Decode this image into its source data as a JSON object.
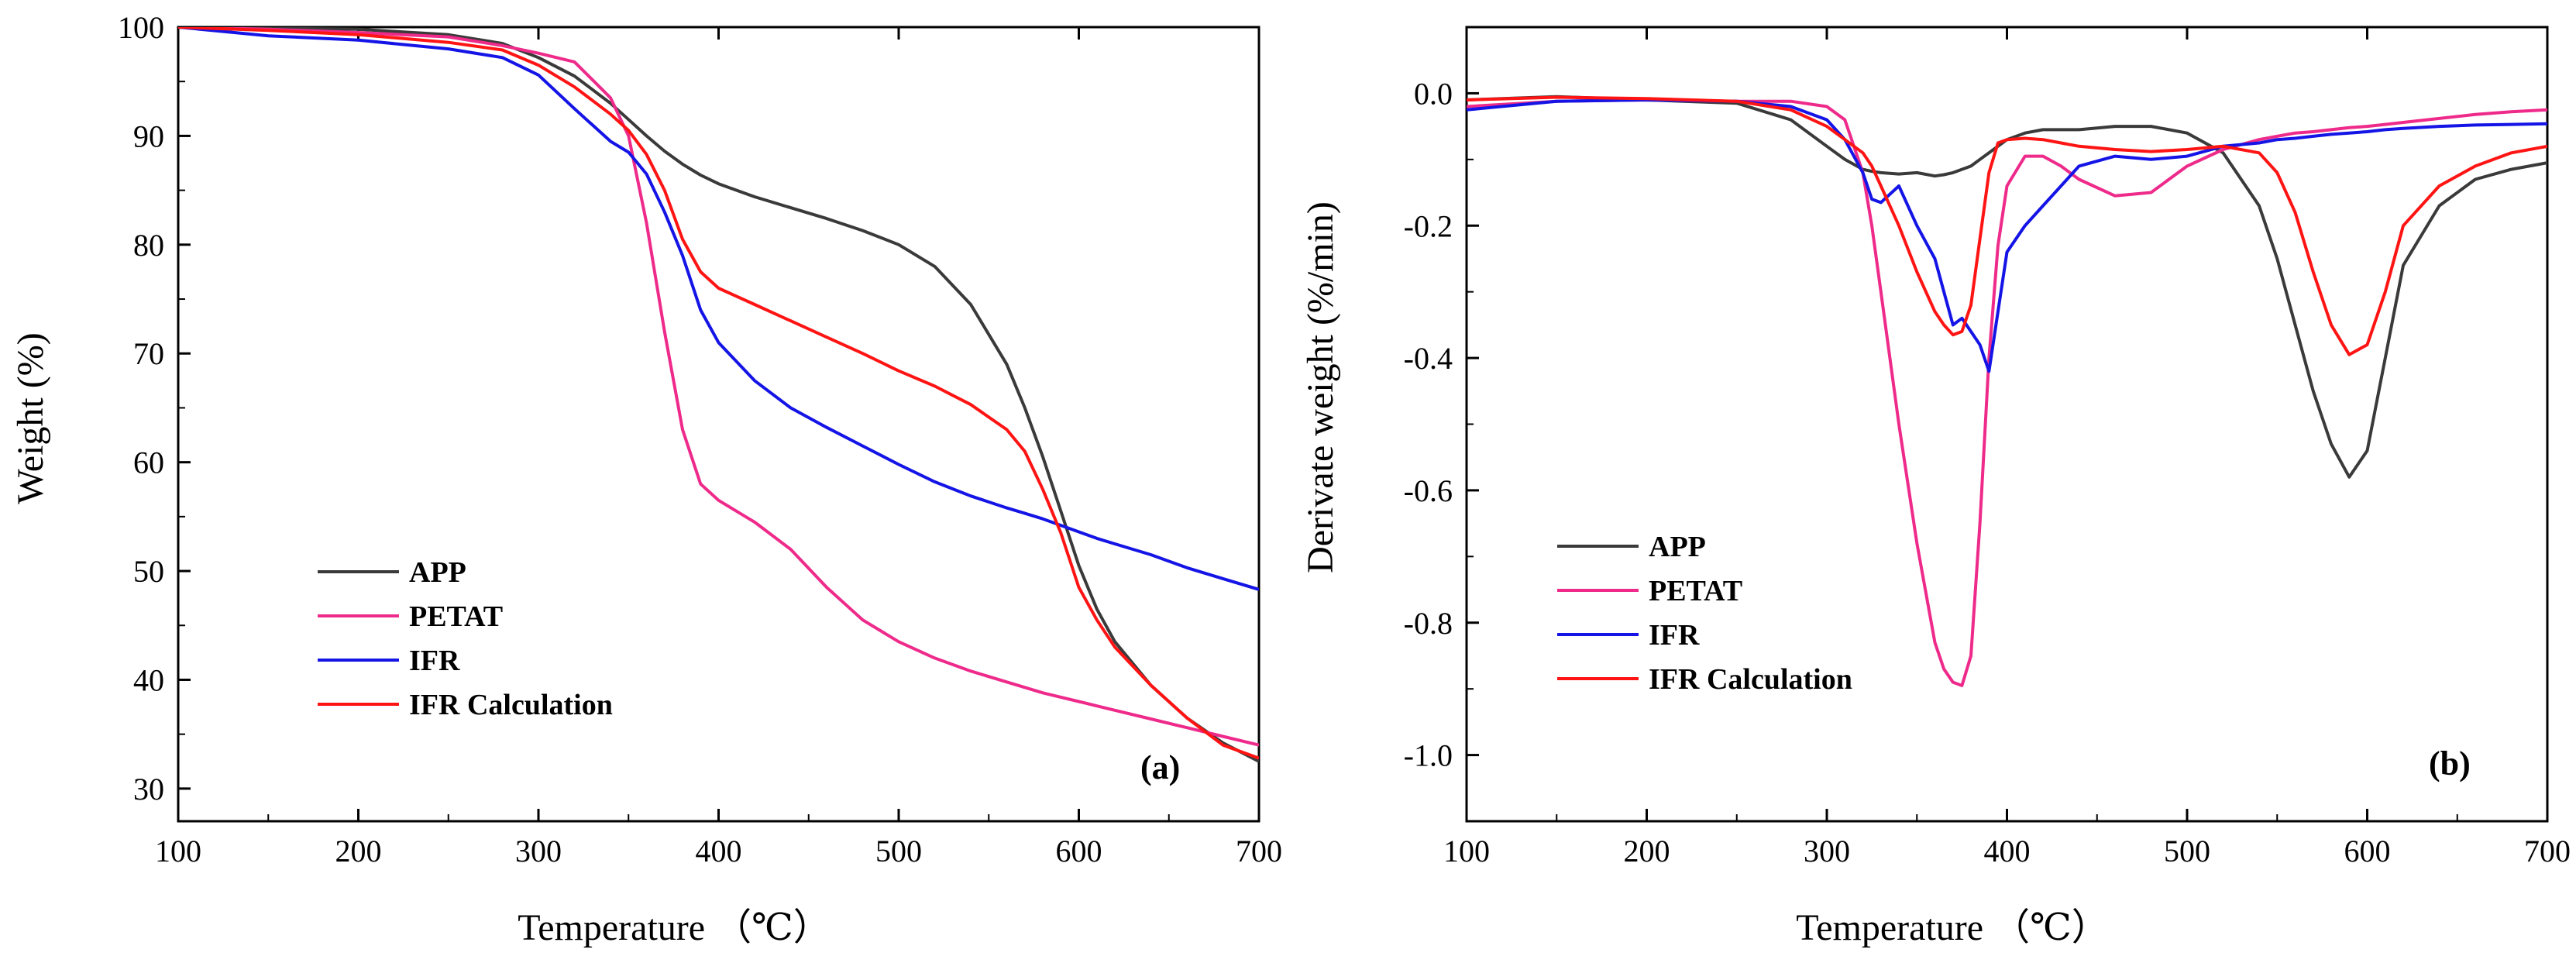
{
  "colors": {
    "APP": "#3a3a3a",
    "PETAT": "#ee2a8a",
    "IFR": "#1414e6",
    "IFR Calculation": "#ff1414",
    "axis": "#000000"
  },
  "chart_data": [
    {
      "type": "line",
      "panel_label": "(a)",
      "xlabel": "Temperature （℃）",
      "ylabel": "Weight (%)",
      "xlim": [
        100,
        700
      ],
      "ylim": [
        27,
        100
      ],
      "xticks": [
        100,
        200,
        300,
        400,
        500,
        600,
        700
      ],
      "yticks": [
        30,
        40,
        50,
        60,
        70,
        80,
        90,
        100
      ],
      "legend_position": "center-left",
      "x": [
        100,
        150,
        200,
        250,
        280,
        300,
        320,
        340,
        350,
        360,
        370,
        380,
        390,
        400,
        420,
        440,
        460,
        480,
        500,
        520,
        540,
        560,
        570,
        580,
        590,
        600,
        610,
        620,
        640,
        660,
        680,
        700
      ],
      "series": [
        {
          "name": "APP",
          "values": [
            100,
            99.9,
            99.8,
            99.3,
            98.5,
            97.2,
            95.5,
            93,
            91.5,
            90,
            88.6,
            87.4,
            86.4,
            85.6,
            84.4,
            83.4,
            82.4,
            81.3,
            80,
            78,
            74.5,
            69,
            65,
            60.5,
            55.5,
            50.5,
            46.5,
            43.5,
            39.5,
            36.5,
            34.2,
            32.5
          ]
        },
        {
          "name": "PETAT",
          "values": [
            100,
            99.8,
            99.5,
            99.1,
            98.3,
            97.6,
            96.8,
            93.5,
            90,
            82,
            72,
            63,
            58,
            56.5,
            54.5,
            52,
            48.5,
            45.5,
            43.5,
            42,
            40.8,
            39.8,
            39.3,
            38.8,
            38.4,
            38,
            37.6,
            37.2,
            36.4,
            35.6,
            34.8,
            34
          ]
        },
        {
          "name": "IFR",
          "values": [
            100,
            99.2,
            98.8,
            98,
            97.2,
            95.6,
            92.5,
            89.5,
            88.5,
            86.5,
            83,
            79,
            74,
            71,
            67.5,
            65,
            63.2,
            61.5,
            59.8,
            58.2,
            56.9,
            55.8,
            55.3,
            54.8,
            54.2,
            53.6,
            53,
            52.5,
            51.5,
            50.3,
            49.3,
            48.3
          ]
        },
        {
          "name": "IFR Calculation",
          "values": [
            100,
            99.7,
            99.3,
            98.6,
            97.9,
            96.5,
            94.5,
            92,
            90.5,
            88.3,
            85,
            80.5,
            77.5,
            76,
            74.5,
            73,
            71.5,
            70,
            68.4,
            67,
            65.3,
            63,
            61,
            57.5,
            53.5,
            48.5,
            45.5,
            43,
            39.5,
            36.5,
            34,
            32.8
          ]
        }
      ]
    },
    {
      "type": "line",
      "panel_label": "(b)",
      "xlabel": "Temperature （℃）",
      "ylabel": "Derivate weight (%/min)",
      "xlim": [
        100,
        700
      ],
      "ylim": [
        -1.1,
        0.1
      ],
      "xticks": [
        100,
        200,
        300,
        400,
        500,
        600,
        700
      ],
      "yticks": [
        0.0,
        -0.2,
        -0.4,
        -0.6,
        -0.8,
        -1.0
      ],
      "ytick_labels": [
        "0.0",
        "-0.2",
        "-0.4",
        "-0.6",
        "-0.8",
        "-1.0"
      ],
      "legend_position": "center-left",
      "x": [
        100,
        150,
        200,
        250,
        280,
        300,
        310,
        320,
        325,
        330,
        340,
        350,
        360,
        365,
        370,
        375,
        380,
        385,
        390,
        395,
        400,
        410,
        420,
        430,
        440,
        460,
        480,
        500,
        520,
        540,
        550,
        560,
        570,
        580,
        590,
        600,
        610,
        620,
        640,
        660,
        680,
        700
      ],
      "series": [
        {
          "name": "APP",
          "values": [
            -0.01,
            -0.005,
            -0.01,
            -0.015,
            -0.04,
            -0.08,
            -0.1,
            -0.115,
            -0.118,
            -0.12,
            -0.122,
            -0.12,
            -0.125,
            -0.123,
            -0.12,
            -0.115,
            -0.11,
            -0.1,
            -0.09,
            -0.08,
            -0.07,
            -0.06,
            -0.055,
            -0.055,
            -0.055,
            -0.05,
            -0.05,
            -0.06,
            -0.09,
            -0.17,
            -0.25,
            -0.35,
            -0.45,
            -0.53,
            -0.58,
            -0.54,
            -0.4,
            -0.26,
            -0.17,
            -0.13,
            -0.115,
            -0.105
          ]
        },
        {
          "name": "PETAT",
          "values": [
            -0.02,
            -0.012,
            -0.01,
            -0.012,
            -0.012,
            -0.02,
            -0.04,
            -0.12,
            -0.2,
            -0.3,
            -0.5,
            -0.68,
            -0.83,
            -0.87,
            -0.89,
            -0.895,
            -0.85,
            -0.65,
            -0.4,
            -0.23,
            -0.14,
            -0.095,
            -0.095,
            -0.11,
            -0.13,
            -0.155,
            -0.15,
            -0.11,
            -0.085,
            -0.07,
            -0.065,
            -0.06,
            -0.058,
            -0.055,
            -0.052,
            -0.05,
            -0.047,
            -0.044,
            -0.038,
            -0.032,
            -0.028,
            -0.025
          ]
        },
        {
          "name": "IFR",
          "values": [
            -0.025,
            -0.012,
            -0.01,
            -0.012,
            -0.02,
            -0.04,
            -0.07,
            -0.12,
            -0.16,
            -0.165,
            -0.14,
            -0.2,
            -0.25,
            -0.3,
            -0.35,
            -0.34,
            -0.36,
            -0.38,
            -0.42,
            -0.33,
            -0.24,
            -0.2,
            -0.17,
            -0.14,
            -0.11,
            -0.095,
            -0.1,
            -0.095,
            -0.08,
            -0.075,
            -0.07,
            -0.068,
            -0.065,
            -0.062,
            -0.06,
            -0.058,
            -0.055,
            -0.053,
            -0.05,
            -0.048,
            -0.047,
            -0.046
          ]
        },
        {
          "name": "IFR Calculation",
          "values": [
            -0.01,
            -0.006,
            -0.008,
            -0.012,
            -0.025,
            -0.05,
            -0.07,
            -0.09,
            -0.11,
            -0.14,
            -0.2,
            -0.27,
            -0.33,
            -0.35,
            -0.365,
            -0.36,
            -0.32,
            -0.22,
            -0.12,
            -0.075,
            -0.07,
            -0.068,
            -0.07,
            -0.075,
            -0.08,
            -0.085,
            -0.088,
            -0.085,
            -0.08,
            -0.09,
            -0.12,
            -0.18,
            -0.27,
            -0.35,
            -0.395,
            -0.38,
            -0.3,
            -0.2,
            -0.14,
            -0.11,
            -0.09,
            -0.08
          ]
        }
      ]
    }
  ]
}
